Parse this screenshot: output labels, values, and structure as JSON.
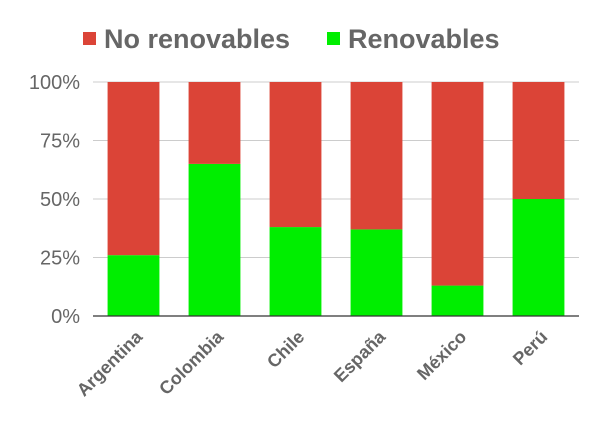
{
  "chart_data": {
    "type": "bar",
    "stacked": true,
    "percent": true,
    "categories": [
      "Argentina",
      "Colombia",
      "Chile",
      "España",
      "México",
      "Perú"
    ],
    "series": [
      {
        "name": "Renovables",
        "color": "#00ee00",
        "values": [
          26,
          65,
          38,
          37,
          13,
          50
        ]
      },
      {
        "name": "No renovables",
        "color": "#db4437",
        "values": [
          74,
          35,
          62,
          63,
          87,
          50
        ]
      }
    ],
    "legend_order": [
      "No renovables",
      "Renovables"
    ],
    "legend_position": "top",
    "ylim": [
      0,
      100
    ],
    "yticks": [
      0,
      25,
      50,
      75,
      100
    ],
    "ytick_labels": [
      "0%",
      "25%",
      "50%",
      "75%",
      "100%"
    ],
    "grid": true,
    "title": "",
    "xlabel": "",
    "ylabel": ""
  }
}
